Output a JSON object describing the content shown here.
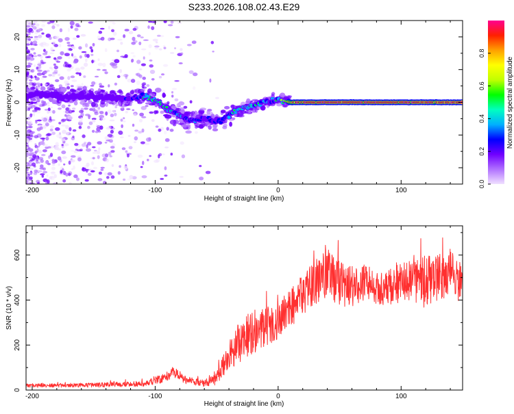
{
  "figure_title": "S233.2026.108.02.43.E29",
  "chart_data": [
    {
      "type": "heatmap",
      "title": "S233.2026.108.02.43.E29",
      "xlabel": "Height of straight line (km)",
      "ylabel": "Frequency (Hz)",
      "xlim": [
        -205,
        150
      ],
      "ylim": [
        -25,
        25
      ],
      "xticks": [
        -200,
        -100,
        0,
        100
      ],
      "xtick_labels": [
        "-200",
        "-100",
        "0",
        "100"
      ],
      "yticks": [
        -20,
        -10,
        0,
        10,
        20
      ],
      "ytick_labels": [
        "-20",
        "-10",
        "0",
        "10",
        "20"
      ],
      "colorbar": {
        "label": "Normalized spectral amplitude",
        "range": [
          0,
          1
        ],
        "ticks": [
          0.0,
          0.2,
          0.4,
          0.6,
          0.8
        ],
        "tick_labels": [
          "0.0",
          "0.2",
          "0.4",
          "0.6",
          "0.8"
        ],
        "colors": [
          "#f0e0ff",
          "#b070ff",
          "#7000ff",
          "#0000ff",
          "#00b0ff",
          "#00ffc0",
          "#00ff00",
          "#c0ff00",
          "#ffff00",
          "#ffa000",
          "#ff2000",
          "#ff0090"
        ]
      },
      "ridge": {
        "x": [
          -205,
          -190,
          -175,
          -160,
          -140,
          -120,
          -110,
          -100,
          -90,
          -80,
          -70,
          -60,
          -50,
          -40,
          -30,
          -20,
          -10,
          0,
          10,
          20,
          50,
          100,
          150
        ],
        "y": [
          2,
          2.5,
          1.5,
          2,
          1.5,
          1,
          2,
          0.5,
          -2,
          -4,
          -6,
          -5,
          -6,
          -4,
          -2,
          -1,
          0,
          1,
          0,
          0,
          0,
          0,
          0
        ],
        "amplitude": [
          0.25,
          0.25,
          0.25,
          0.25,
          0.25,
          0.3,
          0.5,
          0.55,
          0.55,
          0.45,
          0.4,
          0.35,
          0.35,
          0.45,
          0.5,
          0.5,
          0.45,
          0.5,
          0.85,
          0.9,
          0.9,
          0.9,
          0.9
        ]
      }
    },
    {
      "type": "line",
      "xlabel": "Height of straight line (km)",
      "ylabel": "SNR (10 * v/v)",
      "xlim": [
        -205,
        150
      ],
      "ylim": [
        0,
        730
      ],
      "xticks": [
        -200,
        -100,
        0,
        100
      ],
      "xtick_labels": [
        "-200",
        "-100",
        "0",
        "100"
      ],
      "yticks": [
        0,
        200,
        400,
        600
      ],
      "ytick_labels": [
        "0",
        "200",
        "400",
        "600"
      ],
      "color": "#ff3030",
      "envelope": {
        "x": [
          -205,
          -150,
          -110,
          -95,
          -85,
          -75,
          -60,
          -50,
          -40,
          -30,
          -20,
          -10,
          0,
          10,
          20,
          30,
          40,
          50,
          60,
          70,
          80,
          90,
          100,
          110,
          120,
          130,
          140,
          150
        ],
        "y": [
          20,
          22,
          28,
          50,
          80,
          45,
          30,
          50,
          150,
          230,
          260,
          280,
          300,
          370,
          420,
          480,
          520,
          470,
          460,
          480,
          450,
          460,
          480,
          490,
          480,
          500,
          520,
          470
        ],
        "noise": [
          8,
          10,
          12,
          20,
          25,
          18,
          15,
          30,
          70,
          100,
          100,
          90,
          80,
          90,
          90,
          100,
          110,
          100,
          90,
          80,
          80,
          80,
          90,
          110,
          120,
          100,
          110,
          80
        ]
      }
    }
  ]
}
